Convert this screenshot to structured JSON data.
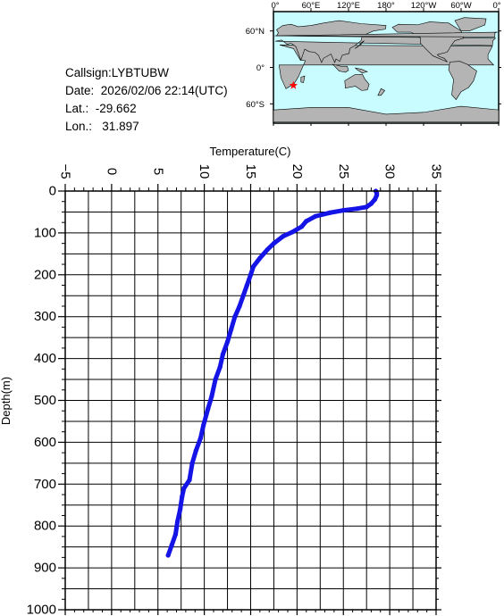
{
  "station": {
    "callsign_label": "Callsign:",
    "callsign": "LYBTUBW",
    "date_label": "Date:",
    "date": "2026/02/06 22:14(UTC)",
    "lat_label": "Lat.:",
    "lat": "-29.662",
    "lon_label": "Lon.:",
    "lon": "31.897"
  },
  "map": {
    "lon_tick_labels": [
      "0°",
      "60°E",
      "120°E",
      "180°",
      "120°W",
      "60°W",
      "0°"
    ],
    "lat_tick_labels": [
      "60°N",
      "0°",
      "60°S"
    ],
    "ocean_color": "#c8fcff",
    "land_color": "#b4b4b4",
    "marker": {
      "lon": 31.897,
      "lat": -29.662,
      "color": "#ff0000",
      "symbol": "star"
    }
  },
  "chart_data": {
    "type": "line",
    "title": "",
    "xlabel": "Temperature(C)",
    "ylabel": "Depth(m)",
    "xlim": [
      -5,
      35
    ],
    "ylim": [
      1000,
      0
    ],
    "x_ticks": [
      -5,
      0,
      5,
      10,
      15,
      20,
      25,
      30,
      35
    ],
    "y_ticks": [
      0,
      100,
      200,
      300,
      400,
      500,
      600,
      700,
      800,
      900,
      1000
    ],
    "x_tick_labels": [
      "−5",
      "0",
      "5",
      "10",
      "15",
      "20",
      "25",
      "30",
      "35"
    ],
    "y_tick_labels": [
      "0",
      "100",
      "200",
      "300",
      "400",
      "500",
      "600",
      "700",
      "800",
      "900",
      "1000"
    ],
    "grid": true,
    "x_axis_position": "top",
    "series_color": "#1414e6",
    "series": [
      {
        "name": "",
        "points": [
          [
            28.5,
            0
          ],
          [
            28.6,
            5
          ],
          [
            28.6,
            10
          ],
          [
            28.4,
            20
          ],
          [
            28.0,
            30
          ],
          [
            27.5,
            38
          ],
          [
            26.5,
            42
          ],
          [
            25.0,
            46
          ],
          [
            23.5,
            52
          ],
          [
            22.0,
            60
          ],
          [
            21.0,
            72
          ],
          [
            20.5,
            85
          ],
          [
            19.5,
            98
          ],
          [
            18.5,
            108
          ],
          [
            17.5,
            125
          ],
          [
            16.8,
            140
          ],
          [
            16.0,
            160
          ],
          [
            15.3,
            180
          ],
          [
            15.0,
            200
          ],
          [
            14.6,
            225
          ],
          [
            14.2,
            250
          ],
          [
            13.8,
            275
          ],
          [
            13.3,
            300
          ],
          [
            12.9,
            330
          ],
          [
            12.5,
            360
          ],
          [
            12.0,
            390
          ],
          [
            11.7,
            420
          ],
          [
            11.2,
            450
          ],
          [
            10.8,
            490
          ],
          [
            10.4,
            520
          ],
          [
            9.9,
            560
          ],
          [
            9.6,
            590
          ],
          [
            9.1,
            620
          ],
          [
            8.7,
            650
          ],
          [
            8.4,
            690
          ],
          [
            7.8,
            710
          ],
          [
            7.6,
            730
          ],
          [
            7.4,
            760
          ],
          [
            7.1,
            790
          ],
          [
            6.9,
            820
          ],
          [
            6.5,
            845
          ],
          [
            6.1,
            870
          ]
        ]
      }
    ]
  }
}
